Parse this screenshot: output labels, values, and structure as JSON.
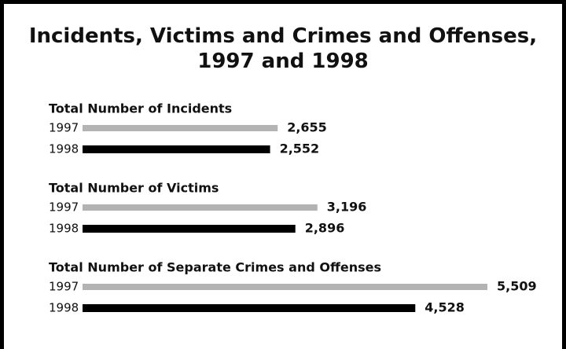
{
  "chart_data": {
    "type": "bar",
    "title": "Incidents, Victims and Crimes and Offenses,\n1997 and 1998",
    "categories": [
      "Total Number of Incidents",
      "Total Number of Victims",
      "Total Number of Separate Crimes and Offenses"
    ],
    "series": [
      {
        "name": "1997",
        "color": "#b3b3b3",
        "values": [
          2655,
          3196,
          5509
        ],
        "value_labels": [
          "2,655",
          "3,196",
          "5,509"
        ]
      },
      {
        "name": "1998",
        "color": "#000000",
        "values": [
          2552,
          2896,
          4528
        ],
        "value_labels": [
          "2,552",
          "2,896",
          "4,528"
        ]
      }
    ]
  }
}
